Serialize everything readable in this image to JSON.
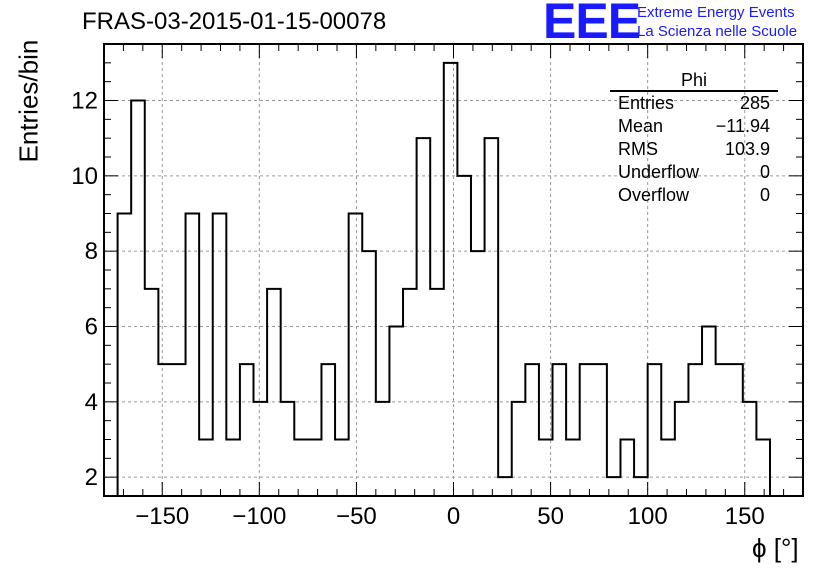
{
  "chart_data": {
    "type": "bar",
    "title": "FRAS-03-2015-01-15-00078",
    "xlabel": "ϕ [°]",
    "ylabel": "Entries/bin",
    "xlim": [
      -180,
      180
    ],
    "ylim": [
      1.5,
      13.5
    ],
    "bin_edges_start": -173,
    "bin_width": 7,
    "values": [
      9,
      12,
      7,
      5,
      5,
      9,
      3,
      9,
      3,
      5,
      4,
      7,
      4,
      3,
      3,
      5,
      3,
      9,
      8,
      4,
      6,
      7,
      11,
      7,
      13,
      10,
      8,
      11,
      2,
      4,
      5,
      3,
      5,
      3,
      5,
      5,
      2,
      3,
      2,
      5,
      3,
      4,
      5,
      6,
      5,
      5,
      4,
      3
    ],
    "xticks": [
      -150,
      -100,
      -50,
      0,
      50,
      100,
      150
    ],
    "xtick_labels": [
      "−150",
      "−100",
      "−50",
      "0",
      "50",
      "100",
      "150"
    ],
    "yticks": [
      2,
      4,
      6,
      8,
      10,
      12
    ],
    "ytick_labels": [
      "2",
      "4",
      "6",
      "8",
      "10",
      "12"
    ],
    "grid": true,
    "line_color": "#000000"
  },
  "logo": {
    "mark": "EEE",
    "line1": "Extreme Energy Events",
    "line2": "La Scienza nelle Scuole",
    "color": "#1a1aff"
  },
  "stats": {
    "title": "Phi",
    "rows": [
      {
        "label": "Entries",
        "value": "285"
      },
      {
        "label": "Mean",
        "value": "−11.94"
      },
      {
        "label": "RMS",
        "value": "103.9"
      },
      {
        "label": "Underflow",
        "value": "0"
      },
      {
        "label": "Overflow",
        "value": "0"
      }
    ]
  }
}
